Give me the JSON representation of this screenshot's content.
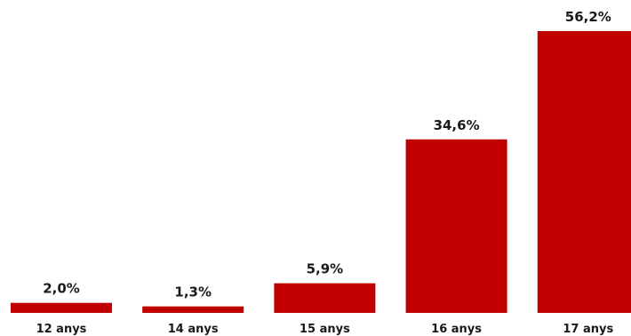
{
  "chart_data": {
    "type": "bar",
    "categories": [
      "12 anys",
      "14 anys",
      "15 anys",
      "16 anys",
      "17 anys"
    ],
    "values": [
      2.0,
      1.3,
      5.9,
      34.6,
      56.2
    ],
    "value_labels": [
      "2,0%",
      "1,3%",
      "5,9%",
      "34,6%",
      "56,2%"
    ],
    "title": "",
    "xlabel": "",
    "ylabel": "",
    "ylim": [
      0,
      56.2
    ],
    "grid": false,
    "legend": "none",
    "bar_color": "#c00000"
  }
}
